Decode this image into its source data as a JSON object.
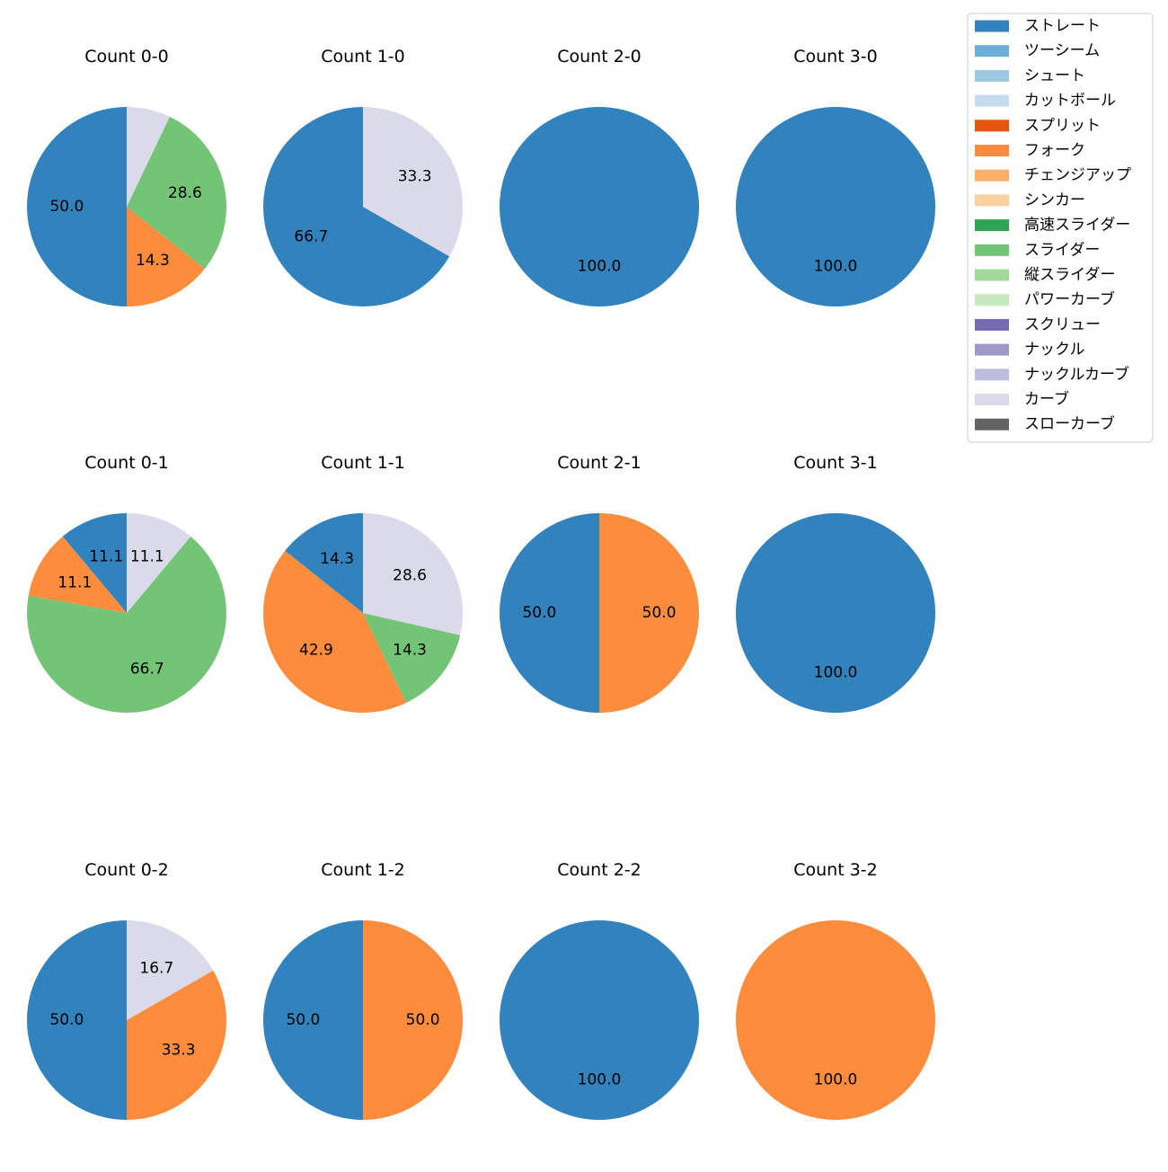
{
  "chart_data": {
    "type": "pie",
    "slice_order": [
      "ストレート",
      "フォーク",
      "スライダー",
      "カーブ"
    ],
    "legend": {
      "placement": "top-right",
      "entries": [
        {
          "label": "ストレート",
          "color": "#3182bd"
        },
        {
          "label": "ツーシーム",
          "color": "#6baed6"
        },
        {
          "label": "シュート",
          "color": "#9ecae1"
        },
        {
          "label": "カットボール",
          "color": "#c6dbef"
        },
        {
          "label": "スプリット",
          "color": "#e6550d"
        },
        {
          "label": "フォーク",
          "color": "#fd8d3c"
        },
        {
          "label": "チェンジアップ",
          "color": "#fdae6b"
        },
        {
          "label": "シンカー",
          "color": "#fdd0a2"
        },
        {
          "label": "高速スライダー",
          "color": "#31a354"
        },
        {
          "label": "スライダー",
          "color": "#74c476"
        },
        {
          "label": "縦スライダー",
          "color": "#a1d99b"
        },
        {
          "label": "パワーカーブ",
          "color": "#c7e9c0"
        },
        {
          "label": "スクリュー",
          "color": "#756bb1"
        },
        {
          "label": "ナックル",
          "color": "#9e9ac8"
        },
        {
          "label": "ナックルカーブ",
          "color": "#bcbddc"
        },
        {
          "label": "カーブ",
          "color": "#dadaeb"
        },
        {
          "label": "スローカーブ",
          "color": "#636363"
        }
      ]
    },
    "charts": [
      {
        "title": "Count 0-0",
        "slices": [
          {
            "label": "ストレート",
            "value": 50.0
          },
          {
            "label": "フォーク",
            "value": 14.3
          },
          {
            "label": "スライダー",
            "value": 28.6
          },
          {
            "label": "カーブ",
            "value": 7.1
          }
        ]
      },
      {
        "title": "Count 1-0",
        "slices": [
          {
            "label": "ストレート",
            "value": 66.7
          },
          {
            "label": "カーブ",
            "value": 33.3
          }
        ]
      },
      {
        "title": "Count 2-0",
        "slices": [
          {
            "label": "ストレート",
            "value": 100.0
          }
        ]
      },
      {
        "title": "Count 3-0",
        "slices": [
          {
            "label": "ストレート",
            "value": 100.0
          }
        ]
      },
      {
        "title": "Count 0-1",
        "slices": [
          {
            "label": "ストレート",
            "value": 11.1
          },
          {
            "label": "フォーク",
            "value": 11.1
          },
          {
            "label": "スライダー",
            "value": 66.7
          },
          {
            "label": "カーブ",
            "value": 11.1
          }
        ]
      },
      {
        "title": "Count 1-1",
        "slices": [
          {
            "label": "ストレート",
            "value": 14.3
          },
          {
            "label": "フォーク",
            "value": 42.9
          },
          {
            "label": "スライダー",
            "value": 14.3
          },
          {
            "label": "カーブ",
            "value": 28.6
          }
        ]
      },
      {
        "title": "Count 2-1",
        "slices": [
          {
            "label": "ストレート",
            "value": 50.0
          },
          {
            "label": "フォーク",
            "value": 50.0
          }
        ]
      },
      {
        "title": "Count 3-1",
        "slices": [
          {
            "label": "ストレート",
            "value": 100.0
          }
        ]
      },
      {
        "title": "Count 0-2",
        "slices": [
          {
            "label": "ストレート",
            "value": 50.0
          },
          {
            "label": "フォーク",
            "value": 33.3
          },
          {
            "label": "カーブ",
            "value": 16.7
          }
        ]
      },
      {
        "title": "Count 1-2",
        "slices": [
          {
            "label": "ストレート",
            "value": 50.0
          },
          {
            "label": "フォーク",
            "value": 50.0
          }
        ]
      },
      {
        "title": "Count 2-2",
        "slices": [
          {
            "label": "ストレート",
            "value": 100.0
          }
        ]
      },
      {
        "title": "Count 3-2",
        "slices": [
          {
            "label": "フォーク",
            "value": 100.0
          }
        ]
      }
    ]
  }
}
